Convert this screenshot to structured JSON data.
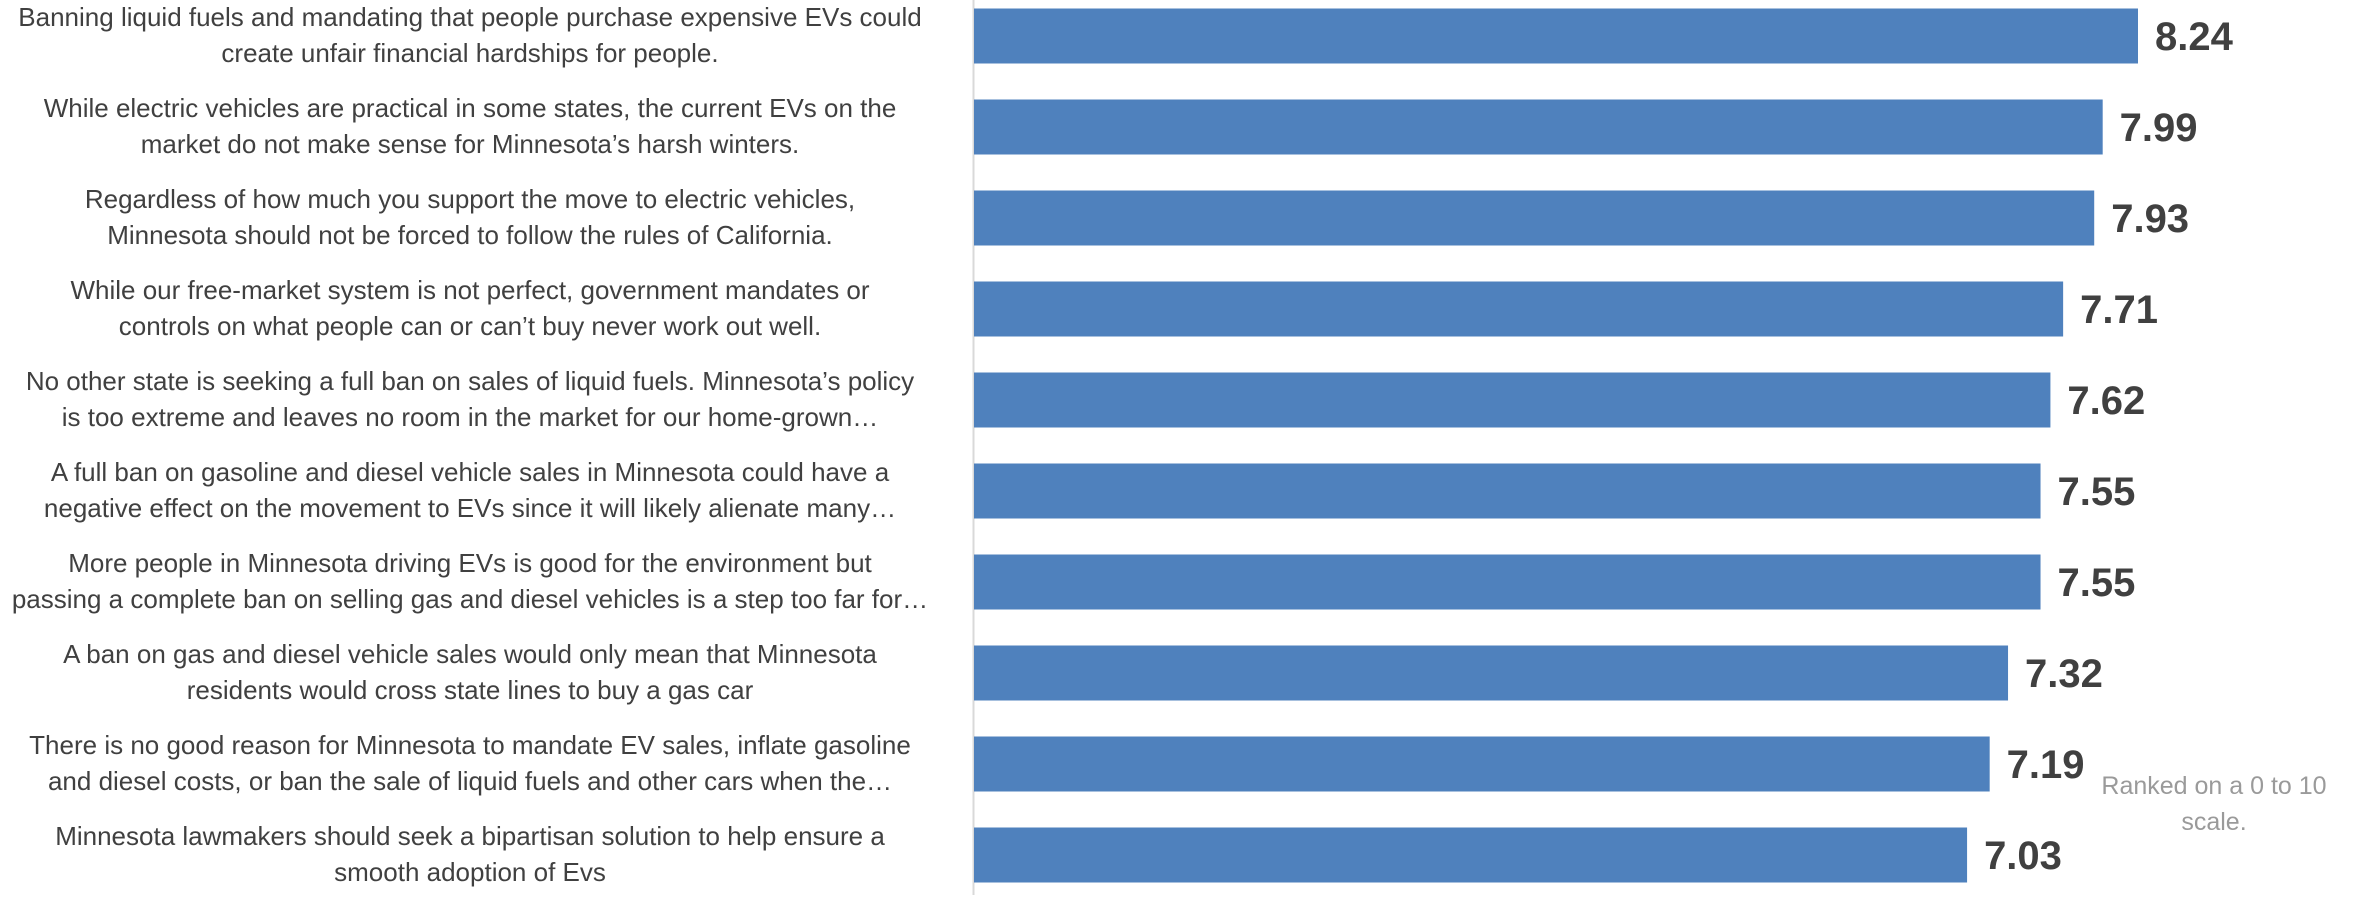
{
  "chart_data": {
    "type": "bar",
    "orientation": "horizontal",
    "categories": [
      [
        "Banning liquid fuels and mandating that people purchase expensive EVs could",
        "create unfair financial hardships for people."
      ],
      [
        "While electric vehicles are practical in some states, the current EVs on the",
        "market do not make sense for Minnesota’s harsh winters."
      ],
      [
        "Regardless of how much you support the move to electric vehicles,",
        "Minnesota should not be forced to follow the rules of California."
      ],
      [
        "While our free-market system is not perfect, government mandates or",
        "controls on what people can or can’t buy never work out well."
      ],
      [
        "No other state is seeking a full ban on sales of liquid fuels. Minnesota’s policy",
        "is too extreme and leaves no room in the market for our home-grown…"
      ],
      [
        "A full ban on gasoline and diesel vehicle sales in Minnesota could have a",
        "negative effect on the movement to EVs since it will likely alienate many…"
      ],
      [
        "More people in Minnesota driving EVs is good for the environment but",
        "passing a complete ban on selling gas and diesel vehicles is a step too far for…"
      ],
      [
        "A ban on gas and diesel vehicle sales would only mean that Minnesota",
        "residents would cross state lines to buy a gas car"
      ],
      [
        "There is no good reason for Minnesota to mandate EV sales, inflate gasoline",
        "and diesel costs, or ban the sale of liquid fuels and other cars when the…"
      ],
      [
        "Minnesota lawmakers should seek a bipartisan solution to help ensure a",
        "smooth adoption of Evs"
      ]
    ],
    "values": [
      8.24,
      7.99,
      7.93,
      7.71,
      7.62,
      7.55,
      7.55,
      7.32,
      7.19,
      7.03
    ],
    "value_labels": [
      "8.24",
      "7.99",
      "7.93",
      "7.71",
      "7.62",
      "7.55",
      "7.55",
      "7.32",
      "7.19",
      "7.03"
    ],
    "xlim": [
      0,
      10
    ],
    "bar_color": "#4f81bd",
    "axis_color": "#d9d9d9",
    "grid": false,
    "legend": "none",
    "title": "",
    "xlabel": "",
    "ylabel": ""
  },
  "note": "Ranked on a 0 to 10 scale."
}
